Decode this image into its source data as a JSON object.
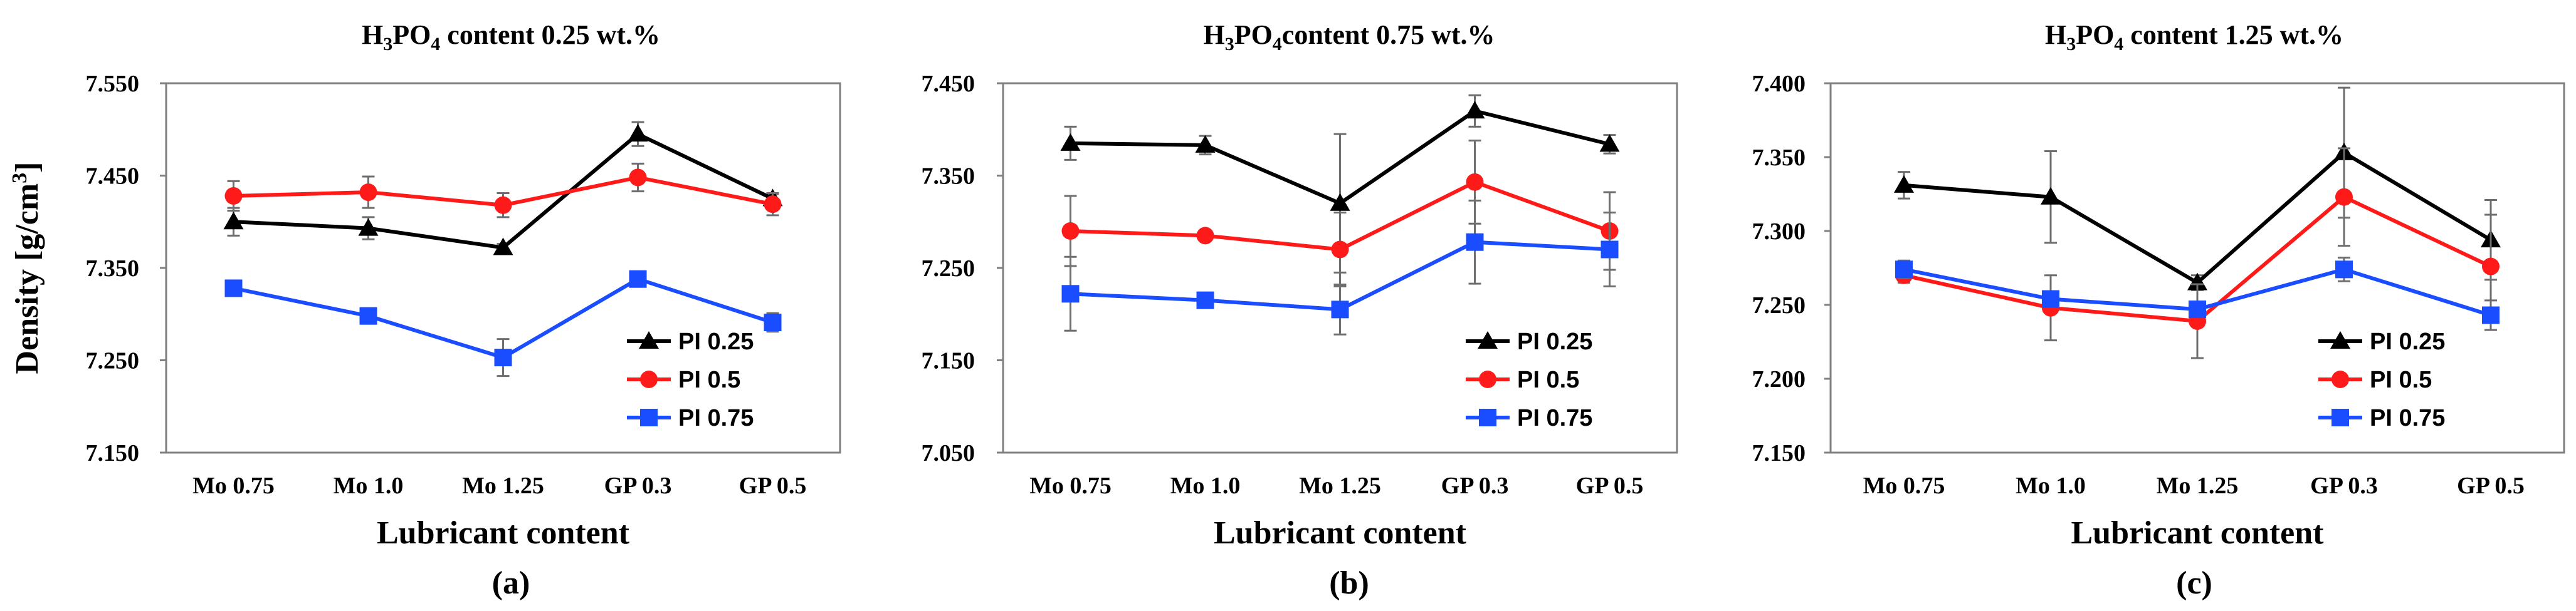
{
  "chart_data": [
    {
      "type": "line",
      "panel_label": "(a)",
      "title": {
        "prefix": "H",
        "sub1": "3",
        "mid": "PO",
        "sub2": "4",
        "suffix": " content 0.25 wt.%"
      },
      "xlabel": "Lubricant content",
      "ylabel": "Density [g/cm",
      "ylabel_sup": "3",
      "ylabel_close": "]",
      "categories": [
        "Mo 0.75",
        "Mo 1.0",
        "Mo 1.25",
        "GP 0.3",
        "GP 0.5"
      ],
      "ylim": [
        7.15,
        7.55
      ],
      "yticks": [
        7.15,
        7.25,
        7.35,
        7.45,
        7.55
      ],
      "ytick_labels": [
        "7.150",
        "7.250",
        "7.350",
        "7.450",
        "7.550"
      ],
      "series": [
        {
          "name": "PI 0.25",
          "color": "#000000",
          "marker": "triangle",
          "values": [
            7.4,
            7.393,
            7.372,
            7.495,
            7.425
          ],
          "errors": [
            0.015,
            0.012,
            0.004,
            0.013,
            0.005
          ]
        },
        {
          "name": "PI 0.5",
          "color": "#ff1a1a",
          "marker": "circle",
          "values": [
            7.428,
            7.432,
            7.418,
            7.448,
            7.419
          ],
          "errors": [
            0.016,
            0.017,
            0.013,
            0.015,
            0.012
          ]
        },
        {
          "name": "PI 0.75",
          "color": "#1a4dff",
          "marker": "square",
          "values": [
            7.328,
            7.298,
            7.253,
            7.338,
            7.291
          ],
          "errors": [
            0.008,
            0.005,
            0.02,
            0.004,
            0.01
          ]
        }
      ]
    },
    {
      "type": "line",
      "panel_label": "(b)",
      "title": {
        "prefix": "H",
        "sub1": "3",
        "mid": "PO",
        "sub2": "4",
        "suffix": "content 0.75 wt.%"
      },
      "xlabel": "Lubricant content",
      "ylabel": "",
      "categories": [
        "Mo 0.75",
        "Mo 1.0",
        "Mo 1.25",
        "GP 0.3",
        "GP 0.5"
      ],
      "ylim": [
        7.05,
        7.45
      ],
      "yticks": [
        7.05,
        7.15,
        7.25,
        7.35,
        7.45
      ],
      "ytick_labels": [
        "7.050",
        "7.150",
        "7.250",
        "7.350",
        "7.450"
      ],
      "series": [
        {
          "name": "PI 0.25",
          "color": "#000000",
          "marker": "triangle",
          "values": [
            7.385,
            7.383,
            7.32,
            7.42,
            7.384
          ],
          "errors": [
            0.018,
            0.01,
            0.075,
            0.017,
            0.01
          ]
        },
        {
          "name": "PI 0.5",
          "color": "#ff1a1a",
          "marker": "circle",
          "values": [
            7.29,
            7.285,
            7.27,
            7.343,
            7.29
          ],
          "errors": [
            0.038,
            0.003,
            0.04,
            0.045,
            0.042
          ]
        },
        {
          "name": "PI 0.75",
          "color": "#1a4dff",
          "marker": "square",
          "values": [
            7.222,
            7.215,
            7.205,
            7.278,
            7.27
          ],
          "errors": [
            0.04,
            0.004,
            0.027,
            0.045,
            0.04
          ]
        }
      ]
    },
    {
      "type": "line",
      "panel_label": "(c)",
      "title": {
        "prefix": "H",
        "sub1": "3",
        "mid": "PO",
        "sub2": "4",
        "suffix": " content 1.25 wt.%"
      },
      "xlabel": "Lubricant content",
      "ylabel": "",
      "categories": [
        "Mo 0.75",
        "Mo 1.0",
        "Mo 1.25",
        "GP 0.3",
        "GP 0.5"
      ],
      "ylim": [
        7.15,
        7.4
      ],
      "yticks": [
        7.15,
        7.2,
        7.25,
        7.3,
        7.35,
        7.4
      ],
      "ytick_labels": [
        "7.150",
        "7.200",
        "7.250",
        "7.300",
        "7.350",
        "7.400"
      ],
      "series": [
        {
          "name": "PI 0.25",
          "color": "#000000",
          "marker": "triangle",
          "values": [
            7.331,
            7.323,
            7.265,
            7.353,
            7.294
          ],
          "errors": [
            0.009,
            0.031,
            0.005,
            0.044,
            0.027
          ]
        },
        {
          "name": "PI 0.5",
          "color": "#ff1a1a",
          "marker": "circle",
          "values": [
            7.27,
            7.248,
            7.239,
            7.323,
            7.276
          ],
          "errors": [
            0.005,
            0.022,
            0.025,
            0.033,
            0.035
          ]
        },
        {
          "name": "PI 0.75",
          "color": "#1a4dff",
          "marker": "square",
          "values": [
            7.274,
            7.254,
            7.247,
            7.274,
            7.243
          ],
          "errors": [
            0.006,
            0.004,
            0.003,
            0.008,
            0.01
          ]
        }
      ]
    }
  ]
}
